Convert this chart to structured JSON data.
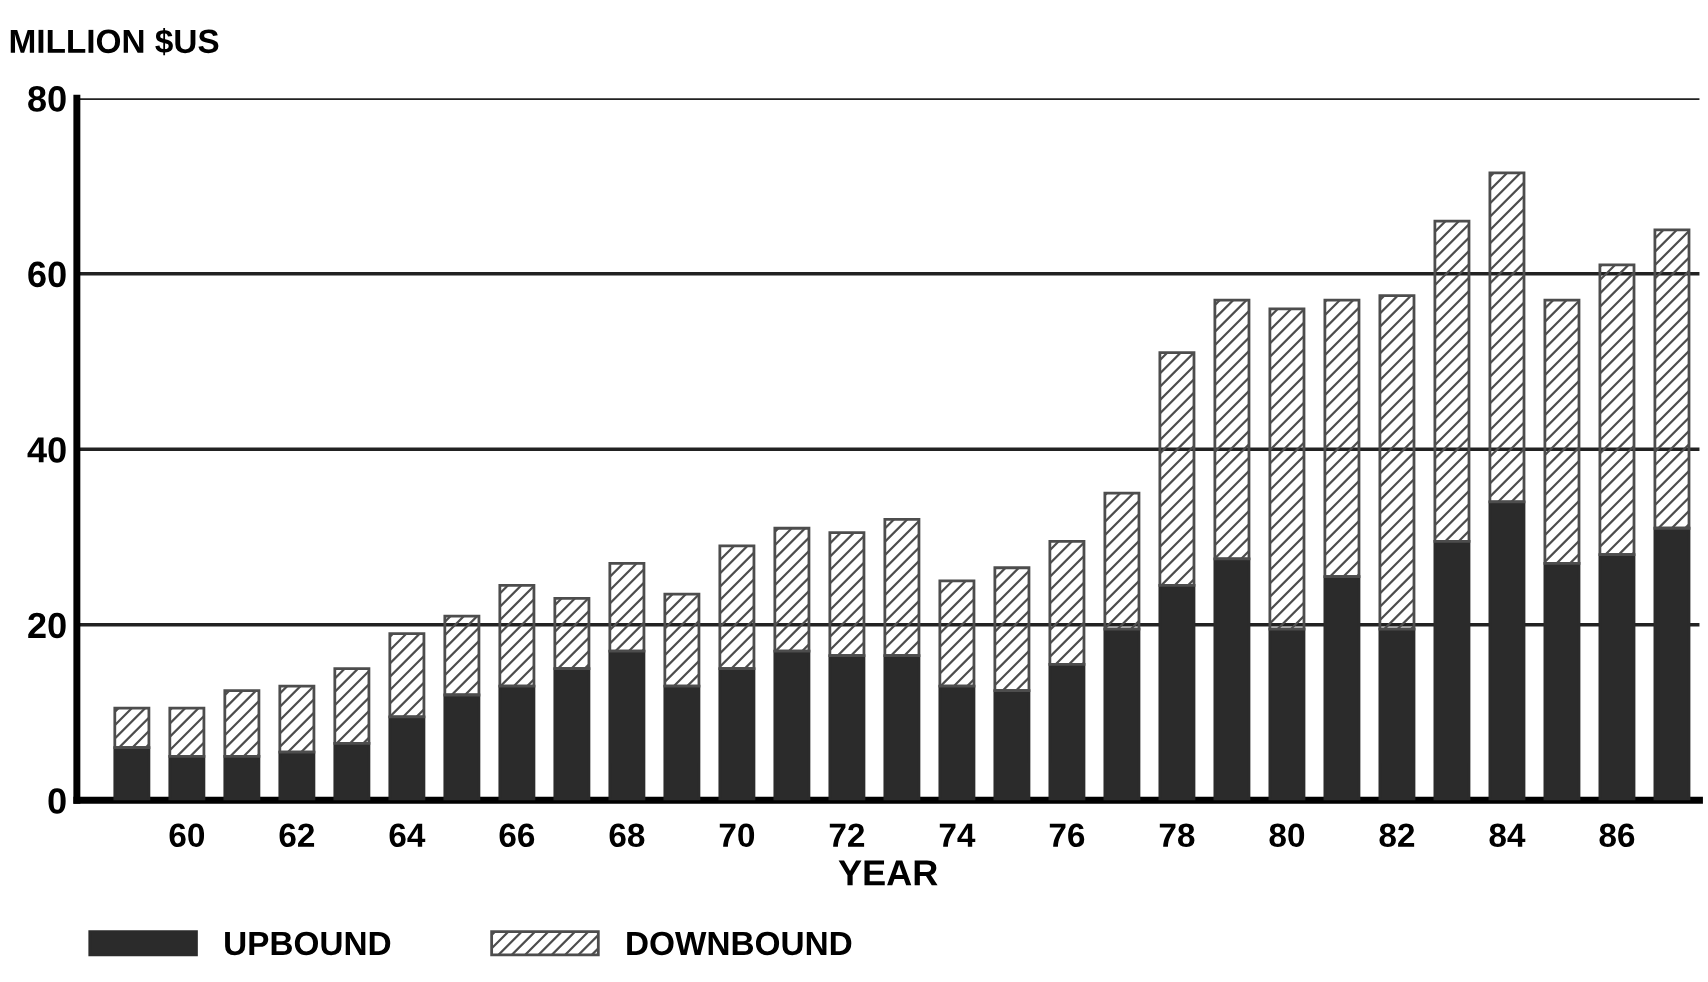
{
  "chart_data": {
    "type": "bar",
    "stacked": true,
    "ylabel": "MILLION $US",
    "xlabel": "YEAR",
    "categories": [
      null,
      "60",
      null,
      "62",
      null,
      "64",
      null,
      "66",
      null,
      "68",
      null,
      "70",
      null,
      "72",
      null,
      "74",
      null,
      "76",
      null,
      "78",
      null,
      "80",
      null,
      "82",
      null,
      "84",
      null,
      "86",
      null
    ],
    "series": [
      {
        "name": "UPBOUND",
        "color": "#2b2b2b",
        "values": [
          6,
          5,
          5,
          5.5,
          6.5,
          9.5,
          12,
          13,
          15,
          17,
          13,
          15,
          17,
          16.5,
          16.5,
          13,
          12.5,
          15.5,
          19.5,
          24.5,
          27.5,
          19.5,
          25.5,
          19.5,
          29.5,
          34,
          27,
          28,
          31
        ]
      },
      {
        "name": "DOWNBOUND",
        "color": "#4d4d4d",
        "values": [
          4.5,
          5.5,
          7.5,
          7.5,
          8.5,
          9.5,
          9,
          11.5,
          8,
          10,
          10.5,
          14,
          14,
          14,
          15.5,
          12,
          14,
          14,
          15.5,
          26.5,
          29.5,
          36.5,
          31.5,
          38,
          36.5,
          37.5,
          30,
          33,
          34
        ]
      }
    ],
    "ylim": [
      0,
      80
    ],
    "yticks": [
      0,
      20,
      40,
      60,
      80
    ],
    "grid": "y",
    "legend": "bottom left"
  }
}
